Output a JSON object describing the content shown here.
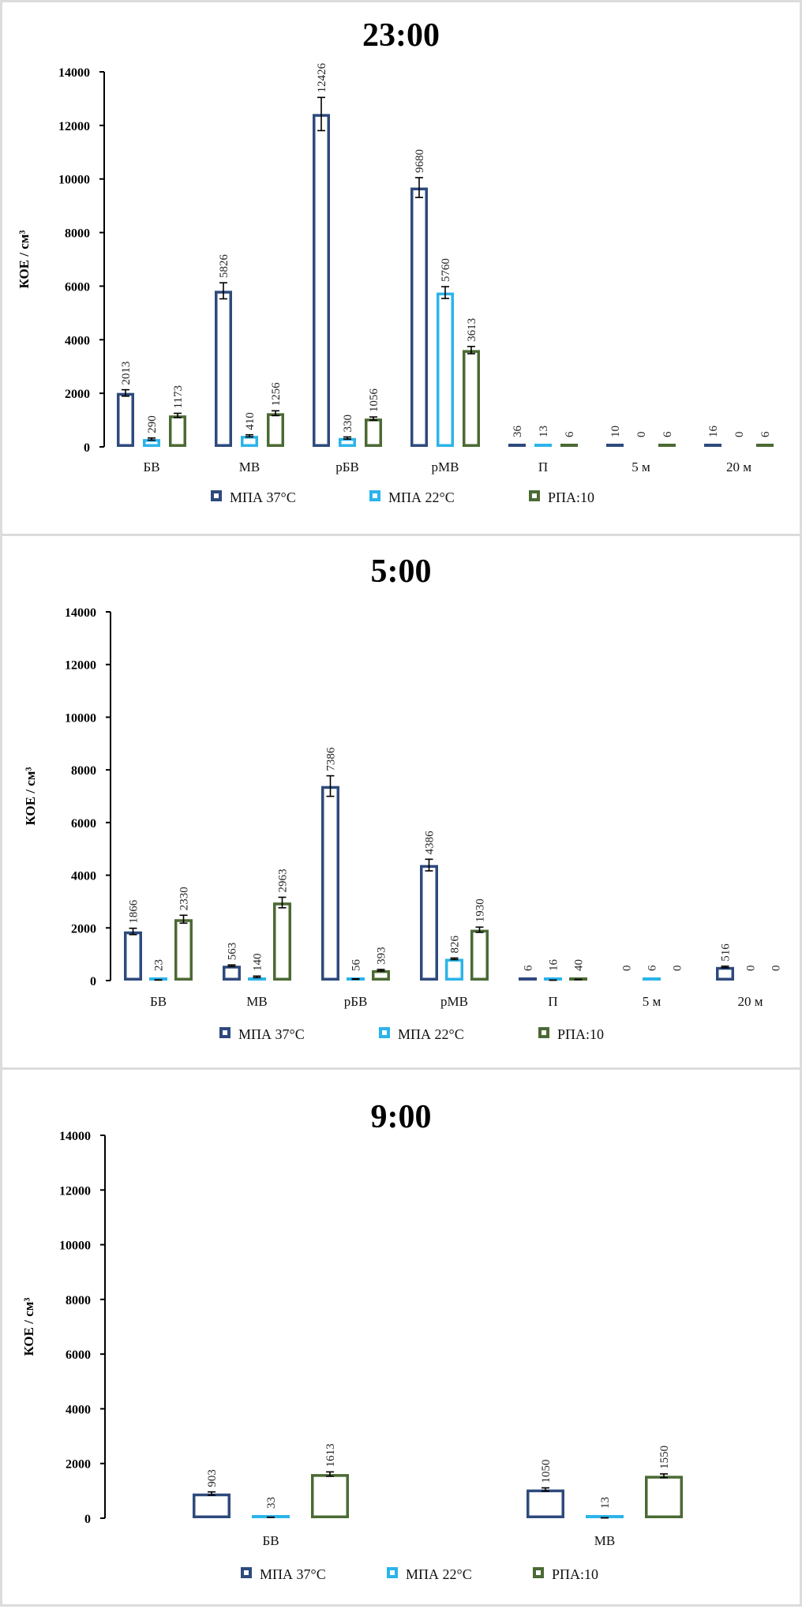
{
  "chart_data": [
    {
      "type": "bar",
      "title": "23:00",
      "ylabel": "КОЕ / см³",
      "xlabel": "",
      "ylim": [
        0,
        14000
      ],
      "yticks": [
        0,
        2000,
        4000,
        6000,
        8000,
        10000,
        12000,
        14000
      ],
      "categories": [
        "БВ",
        "МВ",
        "рБВ",
        "рМВ",
        "П",
        "5 м",
        "20 м"
      ],
      "grid": false,
      "legend_position": "bottom",
      "series": [
        {
          "name": "МПА 37°C",
          "color": "#2E4A7D",
          "values": [
            2013,
            5826,
            12426,
            9680,
            36,
            10,
            16
          ],
          "errors": [
            120,
            300,
            620,
            370,
            0,
            0,
            0
          ]
        },
        {
          "name": "МПА 22°C",
          "color": "#2BB4EA",
          "values": [
            290,
            410,
            330,
            5760,
            13,
            0,
            0
          ],
          "errors": [
            40,
            40,
            40,
            220,
            0,
            0,
            0
          ]
        },
        {
          "name": "РПА:10",
          "color": "#4B6A34",
          "values": [
            1173,
            1256,
            1056,
            3613,
            6,
            6,
            6
          ],
          "errors": [
            80,
            90,
            60,
            135,
            0,
            0,
            0
          ]
        }
      ]
    },
    {
      "type": "bar",
      "title": "5:00",
      "ylabel": "КОЕ / см³",
      "xlabel": "",
      "ylim": [
        0,
        14000
      ],
      "yticks": [
        0,
        2000,
        4000,
        6000,
        8000,
        10000,
        12000,
        14000
      ],
      "categories": [
        "БВ",
        "МВ",
        "рБВ",
        "рМВ",
        "П",
        "5 м",
        "20 м"
      ],
      "grid": false,
      "legend_position": "bottom",
      "series": [
        {
          "name": "МПА 37°C",
          "color": "#2E4A7D",
          "values": [
            1866,
            563,
            7386,
            4386,
            6,
            0,
            516
          ],
          "errors": [
            120,
            30,
            390,
            220,
            0,
            0,
            30
          ]
        },
        {
          "name": "МПА 22°C",
          "color": "#2BB4EA",
          "values": [
            23,
            140,
            56,
            826,
            16,
            6,
            0
          ],
          "errors": [
            5,
            30,
            10,
            30,
            3,
            0,
            0
          ]
        },
        {
          "name": "РПА:10",
          "color": "#4B6A34",
          "values": [
            2330,
            2963,
            393,
            1930,
            40,
            0,
            0
          ],
          "errors": [
            150,
            200,
            30,
            100,
            5,
            0,
            0
          ]
        }
      ]
    },
    {
      "type": "bar",
      "title": "9:00",
      "ylabel": "КОЕ / см³",
      "xlabel": "",
      "ylim": [
        0,
        14000
      ],
      "yticks": [
        0,
        2000,
        4000,
        6000,
        8000,
        10000,
        12000,
        14000
      ],
      "categories": [
        "БВ",
        "МВ"
      ],
      "grid": false,
      "legend_position": "bottom",
      "series": [
        {
          "name": "МПА 37°C",
          "color": "#2E4A7D",
          "values": [
            903,
            1050
          ],
          "errors": [
            60,
            60
          ]
        },
        {
          "name": "МПА 22°C",
          "color": "#2BB4EA",
          "values": [
            33,
            13
          ],
          "errors": [
            5,
            3
          ]
        },
        {
          "name": "РПА:10",
          "color": "#4B6A34",
          "values": [
            1613,
            1550
          ],
          "errors": [
            80,
            70
          ]
        }
      ]
    }
  ]
}
